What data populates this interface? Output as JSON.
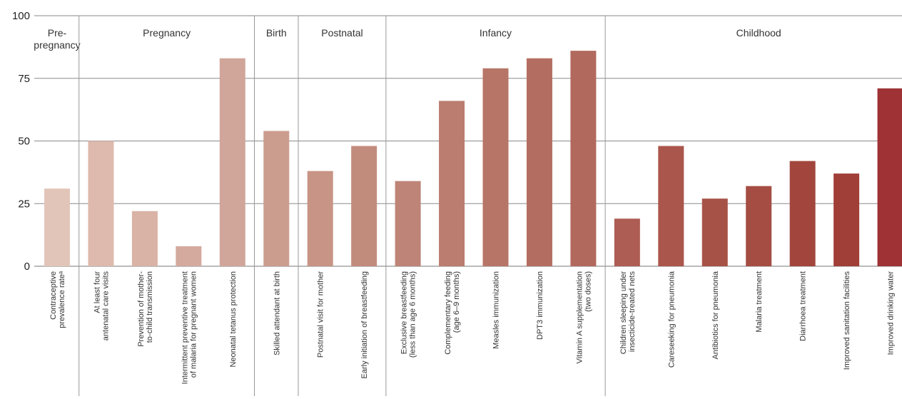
{
  "chart_data": {
    "type": "bar",
    "ylim": [
      0,
      100
    ],
    "yticks": [
      0,
      25,
      50,
      75,
      100
    ],
    "grid": true,
    "phases": [
      {
        "lines": [
          "Pre-",
          "pregnancy"
        ],
        "count": 1
      },
      {
        "lines": [
          "Pregnancy"
        ],
        "count": 4
      },
      {
        "lines": [
          "Birth"
        ],
        "count": 1
      },
      {
        "lines": [
          "Postnatal"
        ],
        "count": 2
      },
      {
        "lines": [
          "Infancy"
        ],
        "count": 5
      },
      {
        "lines": [
          "Childhood"
        ],
        "count": 7
      }
    ],
    "categories": [
      {
        "lines": [
          "Contraceptive",
          "prevalence rateᵃ"
        ]
      },
      {
        "lines": [
          "At least four",
          "antenatal care visits"
        ]
      },
      {
        "lines": [
          "Prevention of mother-",
          "to-child transmission"
        ]
      },
      {
        "lines": [
          "Intermittent preventive treatment",
          "of malaria for pregnant women"
        ]
      },
      {
        "lines": [
          "Neonatal tetanus protection"
        ]
      },
      {
        "lines": [
          "Skilled attendant at birth"
        ]
      },
      {
        "lines": [
          "Postnatal visit for mother"
        ]
      },
      {
        "lines": [
          "Early initiation of breastfeeding"
        ]
      },
      {
        "lines": [
          "Exclusive breastfeeding",
          "(less than age 6 months)"
        ]
      },
      {
        "lines": [
          "Complementary feeding",
          "(age 6–9 months)"
        ]
      },
      {
        "lines": [
          "Measles immunization"
        ]
      },
      {
        "lines": [
          "DPT3 immunization"
        ]
      },
      {
        "lines": [
          "Vitamin A supplementation",
          "(two doses)"
        ]
      },
      {
        "lines": [
          "Children sleeping under",
          "insecticide-treated nets"
        ]
      },
      {
        "lines": [
          "Careseeking for pneumonia"
        ]
      },
      {
        "lines": [
          "Antibiotics for pneumonia"
        ]
      },
      {
        "lines": [
          "Malaria treatment"
        ]
      },
      {
        "lines": [
          "Diarrhoea treatment"
        ]
      },
      {
        "lines": [
          "Improved sanitation facilities"
        ]
      },
      {
        "lines": [
          "Improved drinking water"
        ]
      }
    ],
    "values": [
      31,
      50,
      22,
      8,
      83,
      54,
      38,
      48,
      34,
      66,
      79,
      83,
      86,
      19,
      48,
      27,
      32,
      42,
      37,
      71
    ],
    "colors": [
      "#e2c5b9",
      "#ddbaad",
      "#d9b3a6",
      "#d4aa9f",
      "#d0a69a",
      "#cb9d8f",
      "#c79485",
      "#c28c7d",
      "#be8477",
      "#ba7d6f",
      "#b77567",
      "#b46e61",
      "#b2695d",
      "#ad5d53",
      "#aa564c",
      "#a75247",
      "#a54d43",
      "#a2463d",
      "#a03f38",
      "#9e3235"
    ]
  }
}
